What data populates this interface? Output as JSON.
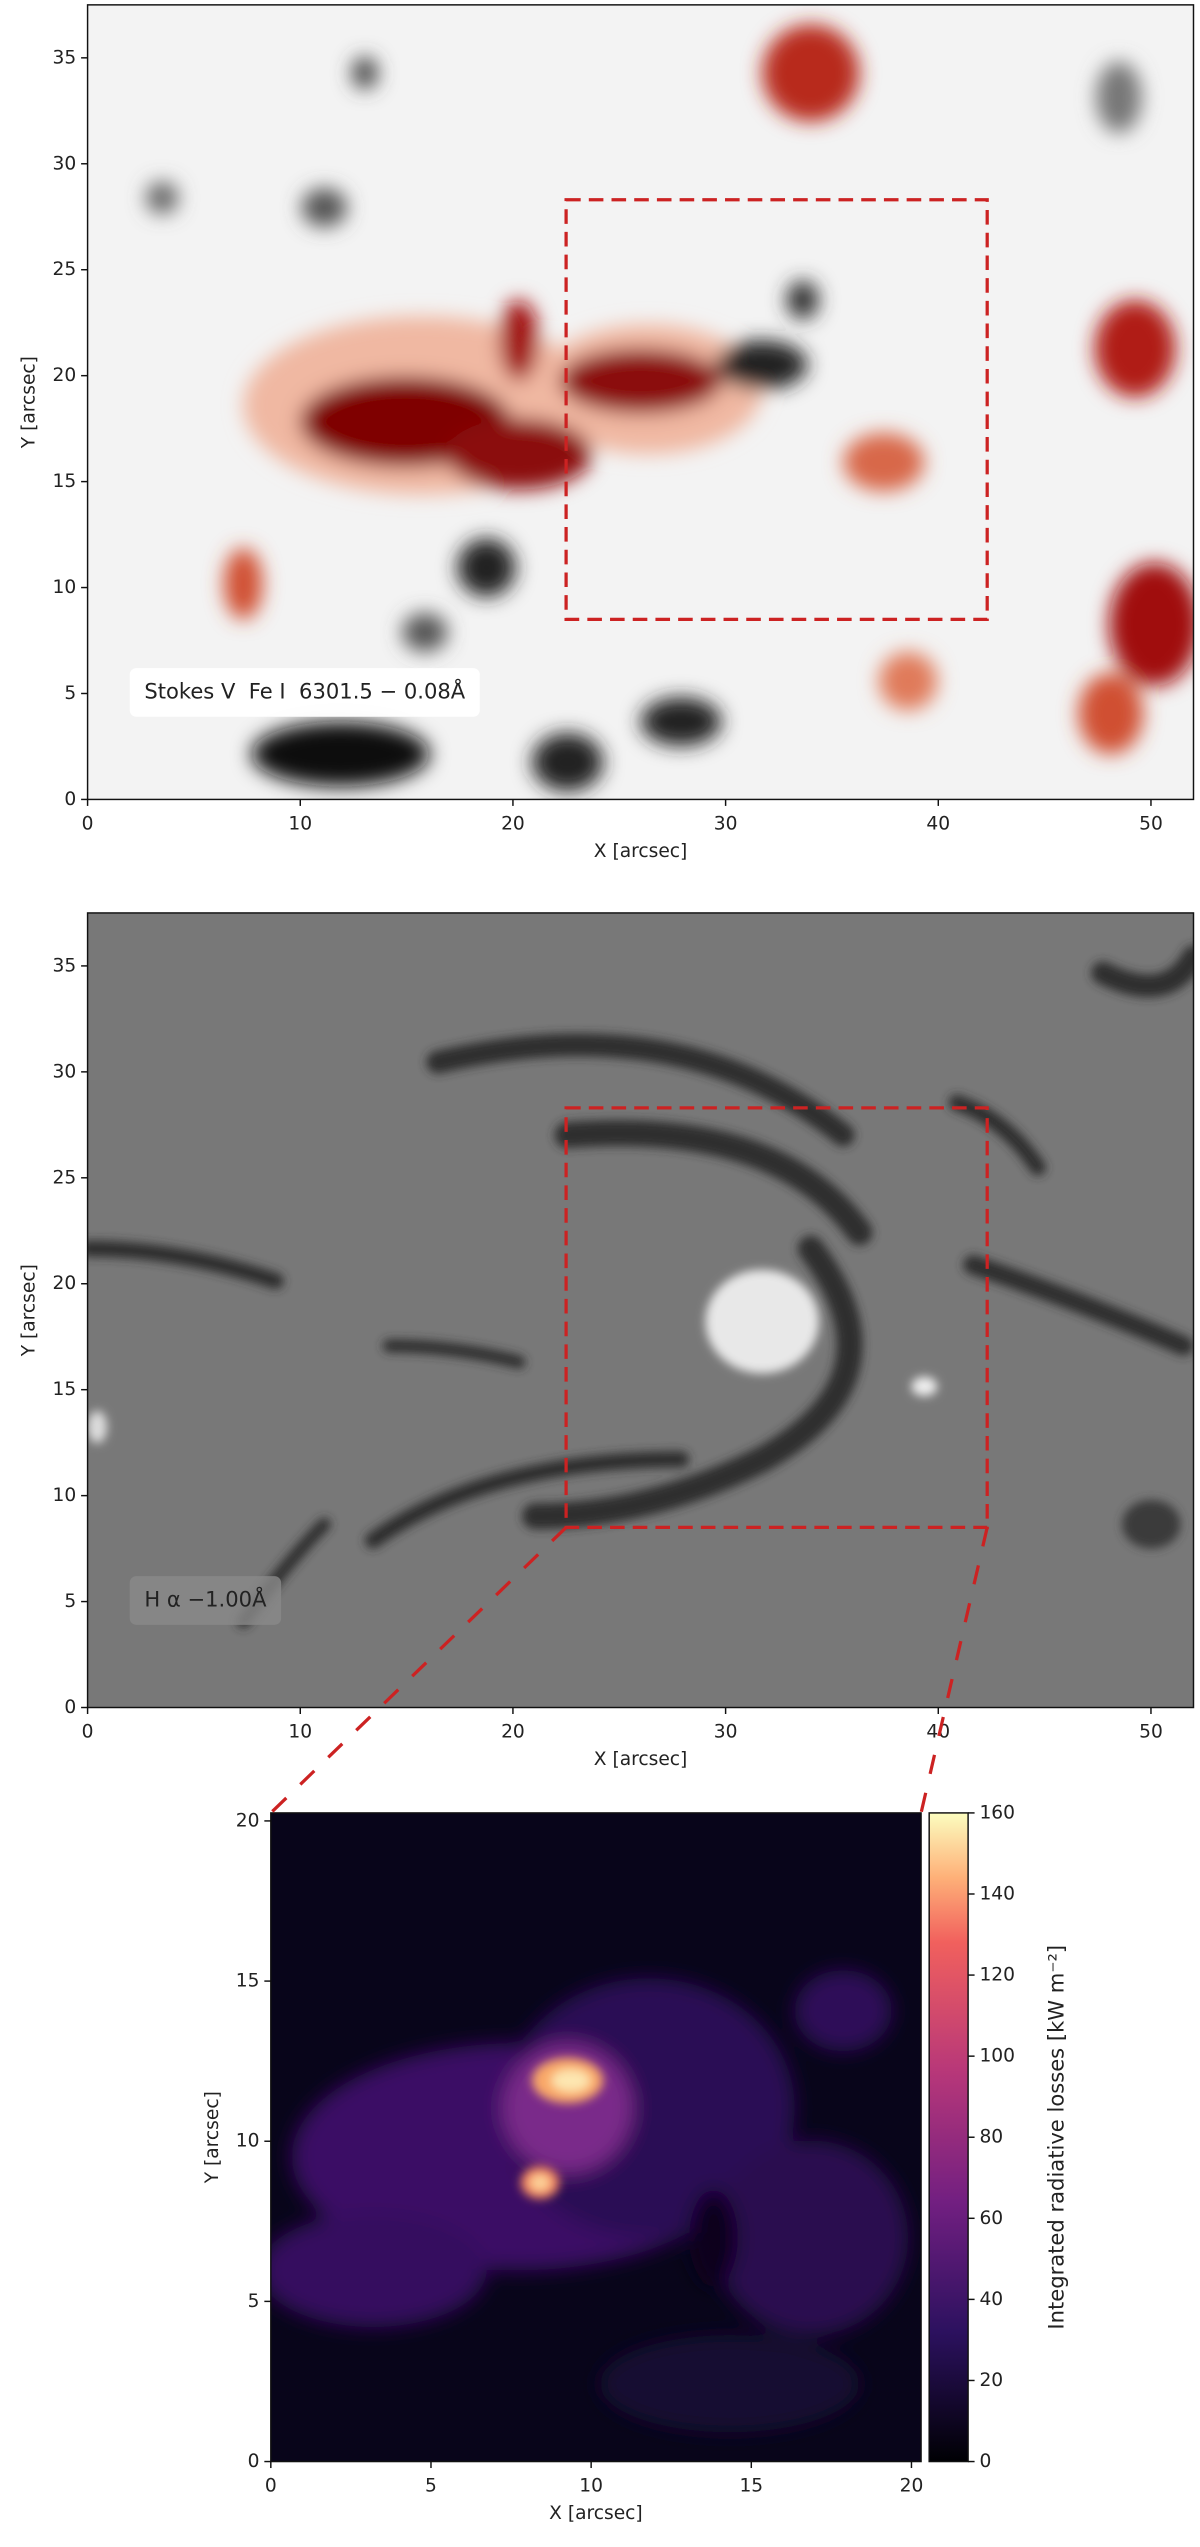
{
  "chart_data": [
    {
      "type": "image",
      "xlabel": "X [arcsec]",
      "ylabel": "Y [arcsec]",
      "annotation": "Stokes V  Fe I  6301.5 − 0.08Å",
      "xlim": [
        0,
        52
      ],
      "ylim": [
        0,
        37.5
      ],
      "xticks": [
        0,
        10,
        20,
        30,
        40,
        50
      ],
      "yticks": [
        0,
        5,
        10,
        15,
        20,
        25,
        30,
        35
      ],
      "box": {
        "x": [
          22.5,
          42.3
        ],
        "y": [
          8.5,
          28.3
        ]
      },
      "box_color": "#cc2222"
    },
    {
      "type": "image",
      "xlabel": "X [arcsec]",
      "ylabel": "Y [arcsec]",
      "annotation": "H α −1.00Å",
      "xlim": [
        0,
        52
      ],
      "ylim": [
        0,
        37.5
      ],
      "xticks": [
        0,
        10,
        20,
        30,
        40,
        50
      ],
      "yticks": [
        0,
        5,
        10,
        15,
        20,
        25,
        30,
        35
      ],
      "box": {
        "x": [
          22.5,
          42.3
        ],
        "y": [
          8.5,
          28.3
        ]
      },
      "box_color": "#cc2222"
    },
    {
      "type": "image",
      "xlabel": "X [arcsec]",
      "ylabel": "Y [arcsec]",
      "xlim": [
        0,
        20.3
      ],
      "ylim": [
        0,
        20.25
      ],
      "xticks": [
        0,
        5,
        10,
        15,
        20
      ],
      "yticks": [
        0,
        5,
        10,
        15,
        20
      ],
      "colorbar": {
        "label": "Integrated radiative losses [kW m⁻²]",
        "lim": [
          0,
          160
        ],
        "ticks": [
          0,
          20,
          40,
          60,
          80,
          100,
          120,
          140,
          160
        ]
      }
    }
  ]
}
